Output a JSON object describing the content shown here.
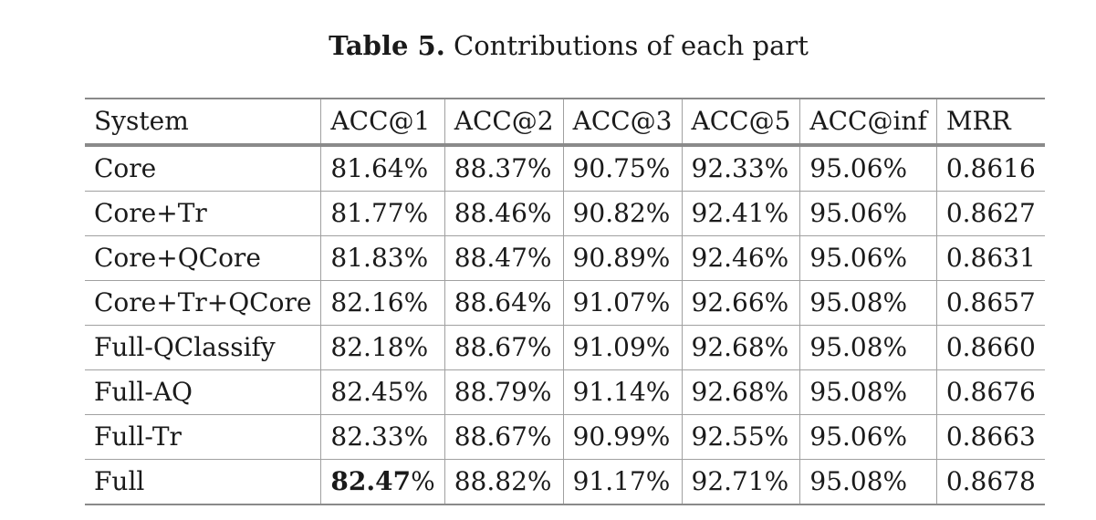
{
  "caption": {
    "label": "Table 5.",
    "text": "Contributions of each part"
  },
  "table": {
    "columns": [
      "System",
      "ACC@1",
      "ACC@2",
      "ACC@3",
      "ACC@5",
      "ACC@inf",
      "MRR"
    ],
    "rows": [
      [
        "Core",
        "81.64%",
        "88.37%",
        "90.75%",
        "92.33%",
        "95.06%",
        "0.8616"
      ],
      [
        "Core+Tr",
        "81.77%",
        "88.46%",
        "90.82%",
        "92.41%",
        "95.06%",
        "0.8627"
      ],
      [
        "Core+QCore",
        "81.83%",
        "88.47%",
        "90.89%",
        "92.46%",
        "95.06%",
        "0.8631"
      ],
      [
        "Core+Tr+QCore",
        "82.16%",
        "88.64%",
        "91.07%",
        "92.66%",
        "95.08%",
        "0.8657"
      ],
      [
        "Full-QClassify",
        "82.18%",
        "88.67%",
        "91.09%",
        "92.68%",
        "95.08%",
        "0.8660"
      ],
      [
        "Full-AQ",
        "82.45%",
        "88.79%",
        "91.14%",
        "92.68%",
        "95.08%",
        "0.8676"
      ],
      [
        "Full-Tr",
        "82.33%",
        "88.67%",
        "90.99%",
        "92.55%",
        "95.06%",
        "0.8663"
      ],
      [
        "Full",
        "82.47",
        "88.82%",
        "91.17%",
        "92.71%",
        "95.08%",
        "0.8678"
      ]
    ],
    "best_suffix": "%"
  }
}
